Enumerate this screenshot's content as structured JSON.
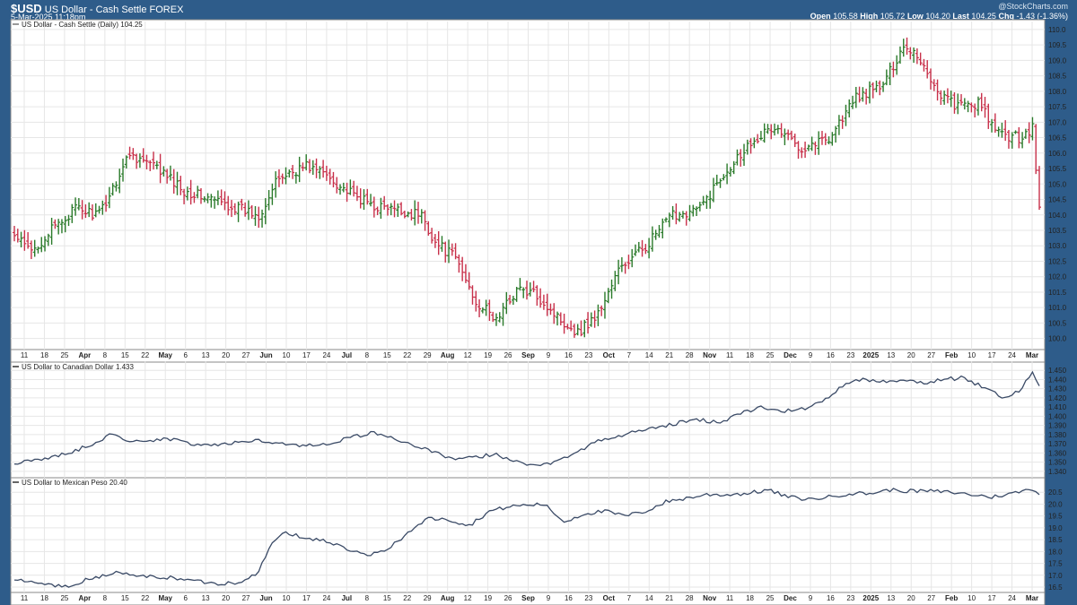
{
  "header": {
    "symbol": "$USD",
    "name": "US Dollar - Cash Settle FOREX",
    "date": "5-Mar-2025 11:18pm",
    "brand": "@StockCharts.com",
    "open_label": "Open",
    "open": "105.58",
    "high_label": "High",
    "high": "105.72",
    "low_label": "Low",
    "low": "104.20",
    "last_label": "Last",
    "last": "104.25",
    "chg_label": "Chg",
    "chg": "-1.43 (-1.36%)"
  },
  "colors": {
    "frame": "#2e5c8a",
    "up": "#2a7a2a",
    "down": "#c8304a",
    "line": "#3a4a66",
    "grid": "#e6e6e6"
  },
  "chart_data": [
    {
      "type": "ohlc",
      "label": "US Dollar - Cash Settle (Daily) 104.25",
      "ylim": [
        99.7,
        110.2
      ],
      "yticks": [
        100.0,
        100.5,
        101.0,
        101.5,
        102.0,
        102.5,
        103.0,
        103.5,
        104.0,
        104.5,
        105.0,
        105.5,
        106.0,
        106.5,
        107.0,
        107.5,
        108.0,
        108.5,
        109.0,
        109.5,
        110.0
      ],
      "x_labels": [
        {
          "t": "11",
          "b": false
        },
        {
          "t": "18",
          "b": false
        },
        {
          "t": "25",
          "b": false
        },
        {
          "t": "Apr",
          "b": true
        },
        {
          "t": "8",
          "b": false
        },
        {
          "t": "15",
          "b": false
        },
        {
          "t": "22",
          "b": false
        },
        {
          "t": "May",
          "b": true
        },
        {
          "t": "6",
          "b": false
        },
        {
          "t": "13",
          "b": false
        },
        {
          "t": "20",
          "b": false
        },
        {
          "t": "27",
          "b": false
        },
        {
          "t": "Jun",
          "b": true
        },
        {
          "t": "10",
          "b": false
        },
        {
          "t": "17",
          "b": false
        },
        {
          "t": "24",
          "b": false
        },
        {
          "t": "Jul",
          "b": true
        },
        {
          "t": "8",
          "b": false
        },
        {
          "t": "15",
          "b": false
        },
        {
          "t": "22",
          "b": false
        },
        {
          "t": "29",
          "b": false
        },
        {
          "t": "Aug",
          "b": true
        },
        {
          "t": "12",
          "b": false
        },
        {
          "t": "19",
          "b": false
        },
        {
          "t": "26",
          "b": false
        },
        {
          "t": "Sep",
          "b": true
        },
        {
          "t": "9",
          "b": false
        },
        {
          "t": "16",
          "b": false
        },
        {
          "t": "23",
          "b": false
        },
        {
          "t": "Oct",
          "b": true
        },
        {
          "t": "7",
          "b": false
        },
        {
          "t": "14",
          "b": false
        },
        {
          "t": "21",
          "b": false
        },
        {
          "t": "28",
          "b": false
        },
        {
          "t": "Nov",
          "b": true
        },
        {
          "t": "11",
          "b": false
        },
        {
          "t": "18",
          "b": false
        },
        {
          "t": "25",
          "b": false
        },
        {
          "t": "Dec",
          "b": true
        },
        {
          "t": "9",
          "b": false
        },
        {
          "t": "16",
          "b": false
        },
        {
          "t": "23",
          "b": false
        },
        {
          "t": "2025",
          "b": true
        },
        {
          "t": "13",
          "b": false
        },
        {
          "t": "20",
          "b": false
        },
        {
          "t": "27",
          "b": false
        },
        {
          "t": "Feb",
          "b": true
        },
        {
          "t": "10",
          "b": false
        },
        {
          "t": "17",
          "b": false
        },
        {
          "t": "24",
          "b": false
        },
        {
          "t": "Mar",
          "b": true
        }
      ],
      "close_anchors": [
        [
          0,
          103.3
        ],
        [
          5,
          102.8
        ],
        [
          10,
          103.4
        ],
        [
          18,
          104.2
        ],
        [
          25,
          104.0
        ],
        [
          34,
          106.0
        ],
        [
          42,
          105.5
        ],
        [
          50,
          104.8
        ],
        [
          58,
          104.5
        ],
        [
          66,
          104.2
        ],
        [
          72,
          104.0
        ],
        [
          78,
          105.2
        ],
        [
          86,
          105.6
        ],
        [
          92,
          105.3
        ],
        [
          100,
          104.6
        ],
        [
          106,
          104.3
        ],
        [
          114,
          104.1
        ],
        [
          120,
          104.0
        ],
        [
          124,
          103.1
        ],
        [
          130,
          102.6
        ],
        [
          136,
          101.2
        ],
        [
          142,
          100.6
        ],
        [
          148,
          101.6
        ],
        [
          154,
          101.4
        ],
        [
          160,
          100.7
        ],
        [
          166,
          100.2
        ],
        [
          172,
          100.8
        ],
        [
          178,
          102.2
        ],
        [
          186,
          103.0
        ],
        [
          194,
          104.0
        ],
        [
          202,
          104.2
        ],
        [
          210,
          105.5
        ],
        [
          218,
          106.5
        ],
        [
          224,
          106.8
        ],
        [
          232,
          106.2
        ],
        [
          240,
          106.5
        ],
        [
          248,
          107.8
        ],
        [
          256,
          108.2
        ],
        [
          262,
          109.5
        ],
        [
          266,
          109.2
        ],
        [
          272,
          108.0
        ],
        [
          278,
          107.5
        ],
        [
          284,
          107.6
        ],
        [
          290,
          106.6
        ],
        [
          296,
          106.5
        ],
        [
          300,
          106.8
        ],
        [
          302,
          104.25
        ]
      ]
    },
    {
      "type": "line",
      "label": "US Dollar to Canadian Dollar 1.433",
      "ylim": [
        1.335,
        1.458
      ],
      "yticks": [
        1.34,
        1.35,
        1.36,
        1.37,
        1.38,
        1.39,
        1.4,
        1.41,
        1.42,
        1.43,
        1.44,
        1.45
      ],
      "anchors": [
        [
          0,
          1.348
        ],
        [
          6,
          1.352
        ],
        [
          14,
          1.358
        ],
        [
          22,
          1.368
        ],
        [
          28,
          1.38
        ],
        [
          36,
          1.372
        ],
        [
          44,
          1.376
        ],
        [
          52,
          1.37
        ],
        [
          60,
          1.368
        ],
        [
          68,
          1.374
        ],
        [
          76,
          1.372
        ],
        [
          84,
          1.368
        ],
        [
          92,
          1.37
        ],
        [
          100,
          1.378
        ],
        [
          106,
          1.382
        ],
        [
          112,
          1.376
        ],
        [
          118,
          1.368
        ],
        [
          124,
          1.36
        ],
        [
          130,
          1.352
        ],
        [
          136,
          1.356
        ],
        [
          142,
          1.358
        ],
        [
          148,
          1.352
        ],
        [
          154,
          1.345
        ],
        [
          160,
          1.352
        ],
        [
          166,
          1.362
        ],
        [
          172,
          1.373
        ],
        [
          178,
          1.378
        ],
        [
          184,
          1.384
        ],
        [
          192,
          1.39
        ],
        [
          200,
          1.396
        ],
        [
          208,
          1.394
        ],
        [
          214,
          1.403
        ],
        [
          220,
          1.41
        ],
        [
          226,
          1.405
        ],
        [
          232,
          1.408
        ],
        [
          238,
          1.415
        ],
        [
          244,
          1.433
        ],
        [
          250,
          1.44
        ],
        [
          256,
          1.438
        ],
        [
          262,
          1.44
        ],
        [
          268,
          1.436
        ],
        [
          274,
          1.44
        ],
        [
          280,
          1.442
        ],
        [
          286,
          1.43
        ],
        [
          292,
          1.42
        ],
        [
          296,
          1.428
        ],
        [
          300,
          1.448
        ],
        [
          302,
          1.433
        ]
      ]
    },
    {
      "type": "line",
      "label": "US Dollar to Mexican Peso 20.40",
      "ylim": [
        16.35,
        21.0
      ],
      "yticks": [
        16.5,
        17.0,
        17.5,
        18.0,
        18.5,
        19.0,
        19.5,
        20.0,
        20.5
      ],
      "anchors": [
        [
          0,
          16.8
        ],
        [
          8,
          16.65
        ],
        [
          16,
          16.5
        ],
        [
          22,
          16.85
        ],
        [
          30,
          17.1
        ],
        [
          38,
          16.95
        ],
        [
          46,
          16.9
        ],
        [
          54,
          16.75
        ],
        [
          60,
          16.65
        ],
        [
          66,
          16.7
        ],
        [
          72,
          17.15
        ],
        [
          76,
          18.4
        ],
        [
          80,
          18.8
        ],
        [
          86,
          18.55
        ],
        [
          92,
          18.45
        ],
        [
          98,
          18.1
        ],
        [
          104,
          17.8
        ],
        [
          110,
          18.1
        ],
        [
          116,
          18.8
        ],
        [
          122,
          19.4
        ],
        [
          128,
          19.35
        ],
        [
          134,
          19.1
        ],
        [
          140,
          19.7
        ],
        [
          146,
          19.9
        ],
        [
          150,
          19.95
        ],
        [
          156,
          20.0
        ],
        [
          162,
          19.25
        ],
        [
          168,
          19.6
        ],
        [
          174,
          19.7
        ],
        [
          180,
          19.5
        ],
        [
          186,
          19.7
        ],
        [
          192,
          20.1
        ],
        [
          198,
          20.25
        ],
        [
          204,
          20.4
        ],
        [
          210,
          20.4
        ],
        [
          216,
          20.45
        ],
        [
          222,
          20.6
        ],
        [
          228,
          20.3
        ],
        [
          234,
          20.2
        ],
        [
          240,
          20.3
        ],
        [
          246,
          20.45
        ],
        [
          252,
          20.45
        ],
        [
          258,
          20.6
        ],
        [
          264,
          20.55
        ],
        [
          270,
          20.55
        ],
        [
          276,
          20.5
        ],
        [
          282,
          20.4
        ],
        [
          288,
          20.3
        ],
        [
          294,
          20.45
        ],
        [
          300,
          20.65
        ],
        [
          302,
          20.4
        ]
      ]
    }
  ]
}
